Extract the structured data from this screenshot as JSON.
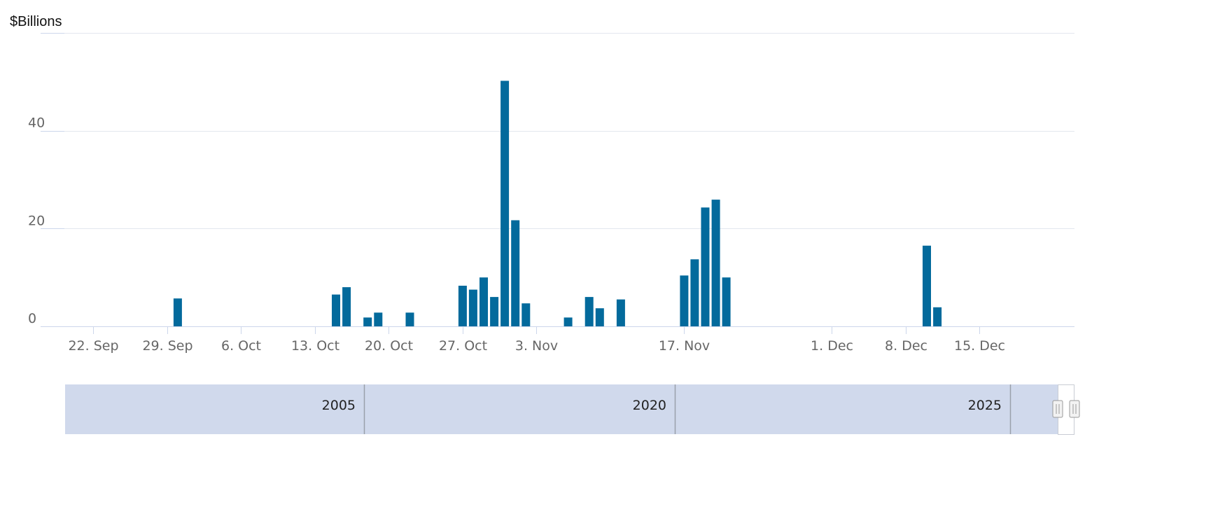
{
  "colors": {
    "bar": "#036a9c",
    "grid": "#e3e7ee",
    "axis": "#ccd6eb",
    "navigator_fill": "#d0d9ec",
    "navigator_divider": "#9aa0aa"
  },
  "chart_data": {
    "type": "bar",
    "ylabel": "$Billions",
    "ylim": [
      0,
      60
    ],
    "y_ticks": [
      "0",
      "20",
      "40"
    ],
    "grid": true,
    "xlim": [
      "2024-09-17",
      "2024-12-24"
    ],
    "x_ticks": [
      {
        "date": "2024-09-22",
        "label": "22. Sep"
      },
      {
        "date": "2024-09-29",
        "label": "29. Sep"
      },
      {
        "date": "2024-10-06",
        "label": "6. Oct"
      },
      {
        "date": "2024-10-13",
        "label": "13. Oct"
      },
      {
        "date": "2024-10-20",
        "label": "20. Oct"
      },
      {
        "date": "2024-10-27",
        "label": "27. Oct"
      },
      {
        "date": "2024-11-03",
        "label": "3. Nov"
      },
      {
        "date": "2024-11-17",
        "label": "17. Nov"
      },
      {
        "date": "2024-12-01",
        "label": "1. Dec"
      },
      {
        "date": "2024-12-08",
        "label": "8. Dec"
      },
      {
        "date": "2024-12-15",
        "label": "15. Dec"
      }
    ],
    "series": [
      {
        "points": [
          {
            "x": "2024-09-30",
            "y": 5.7
          },
          {
            "x": "2024-10-15",
            "y": 6.5
          },
          {
            "x": "2024-10-16",
            "y": 8.0
          },
          {
            "x": "2024-10-18",
            "y": 1.8
          },
          {
            "x": "2024-10-19",
            "y": 2.8
          },
          {
            "x": "2024-10-22",
            "y": 2.8
          },
          {
            "x": "2024-10-27",
            "y": 8.3
          },
          {
            "x": "2024-10-28",
            "y": 7.5
          },
          {
            "x": "2024-10-29",
            "y": 10.0
          },
          {
            "x": "2024-10-30",
            "y": 6.0
          },
          {
            "x": "2024-10-31",
            "y": 50.2
          },
          {
            "x": "2024-11-01",
            "y": 21.7
          },
          {
            "x": "2024-11-02",
            "y": 4.7
          },
          {
            "x": "2024-11-06",
            "y": 1.8
          },
          {
            "x": "2024-11-08",
            "y": 6.0
          },
          {
            "x": "2024-11-09",
            "y": 3.7
          },
          {
            "x": "2024-11-11",
            "y": 5.5
          },
          {
            "x": "2024-11-17",
            "y": 10.4
          },
          {
            "x": "2024-11-18",
            "y": 13.7
          },
          {
            "x": "2024-11-19",
            "y": 24.3
          },
          {
            "x": "2024-11-20",
            "y": 25.9
          },
          {
            "x": "2024-11-21",
            "y": 10.0
          },
          {
            "x": "2024-12-10",
            "y": 16.5
          },
          {
            "x": "2024-12-11",
            "y": 3.9
          }
        ]
      }
    ]
  },
  "navigator": {
    "labels": [
      "2005",
      "2020",
      "2025"
    ]
  }
}
